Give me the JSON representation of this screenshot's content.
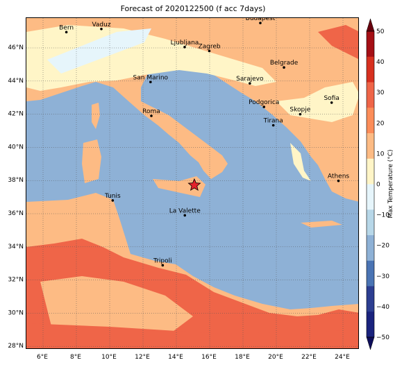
{
  "title": "Forecast of 2020122500 (f acc 7days)",
  "colorbar": {
    "label": "Max Temperature (°C)",
    "ticks": [
      "50",
      "40",
      "30",
      "20",
      "10",
      "0",
      "−10",
      "−20",
      "−30",
      "−40",
      "−50"
    ],
    "colors": [
      "#a50f15",
      "#d7301f",
      "#ef6548",
      "#fc8d59",
      "#fdbb84",
      "#fff5c7",
      "#e6f5fb",
      "#b7d7e8",
      "#8eb1d6",
      "#4a74b4",
      "#2c3e91",
      "#1a237e"
    ]
  },
  "axes": {
    "x_ticks": [
      "6°E",
      "8°E",
      "10°E",
      "12°E",
      "14°E",
      "16°E",
      "18°E",
      "20°E",
      "22°E",
      "24°E"
    ],
    "y_ticks": [
      "46°N",
      "44°N",
      "42°N",
      "40°N",
      "38°N",
      "36°N",
      "34°N",
      "32°N",
      "30°N",
      "28°N"
    ]
  },
  "cities": [
    {
      "name": "Bern",
      "lon": 7.4,
      "lat": 46.95
    },
    {
      "name": "Vaduz",
      "lon": 9.5,
      "lat": 47.14
    },
    {
      "name": "Budapest",
      "lon": 19.04,
      "lat": 47.5
    },
    {
      "name": "Ljubljana",
      "lon": 14.5,
      "lat": 46.05
    },
    {
      "name": "Zagreb",
      "lon": 15.98,
      "lat": 45.81
    },
    {
      "name": "Belgrade",
      "lon": 20.46,
      "lat": 44.82
    },
    {
      "name": "San Marino",
      "lon": 12.45,
      "lat": 43.94
    },
    {
      "name": "Sarajevo",
      "lon": 18.41,
      "lat": 43.86
    },
    {
      "name": "Sofia",
      "lon": 23.32,
      "lat": 42.7
    },
    {
      "name": "Podgorica",
      "lon": 19.26,
      "lat": 42.44
    },
    {
      "name": "Skopje",
      "lon": 21.43,
      "lat": 42.0
    },
    {
      "name": "Roma",
      "lon": 12.5,
      "lat": 41.9
    },
    {
      "name": "Tirana",
      "lon": 19.82,
      "lat": 41.33
    },
    {
      "name": "Athens",
      "lon": 23.73,
      "lat": 37.98
    },
    {
      "name": "Tunis",
      "lon": 10.18,
      "lat": 36.8
    },
    {
      "name": "La Valette",
      "lon": 14.51,
      "lat": 35.9
    },
    {
      "name": "Tripoli",
      "lon": 13.18,
      "lat": 32.89
    }
  ],
  "marker": {
    "lon": 15.08,
    "lat": 37.72
  }
}
